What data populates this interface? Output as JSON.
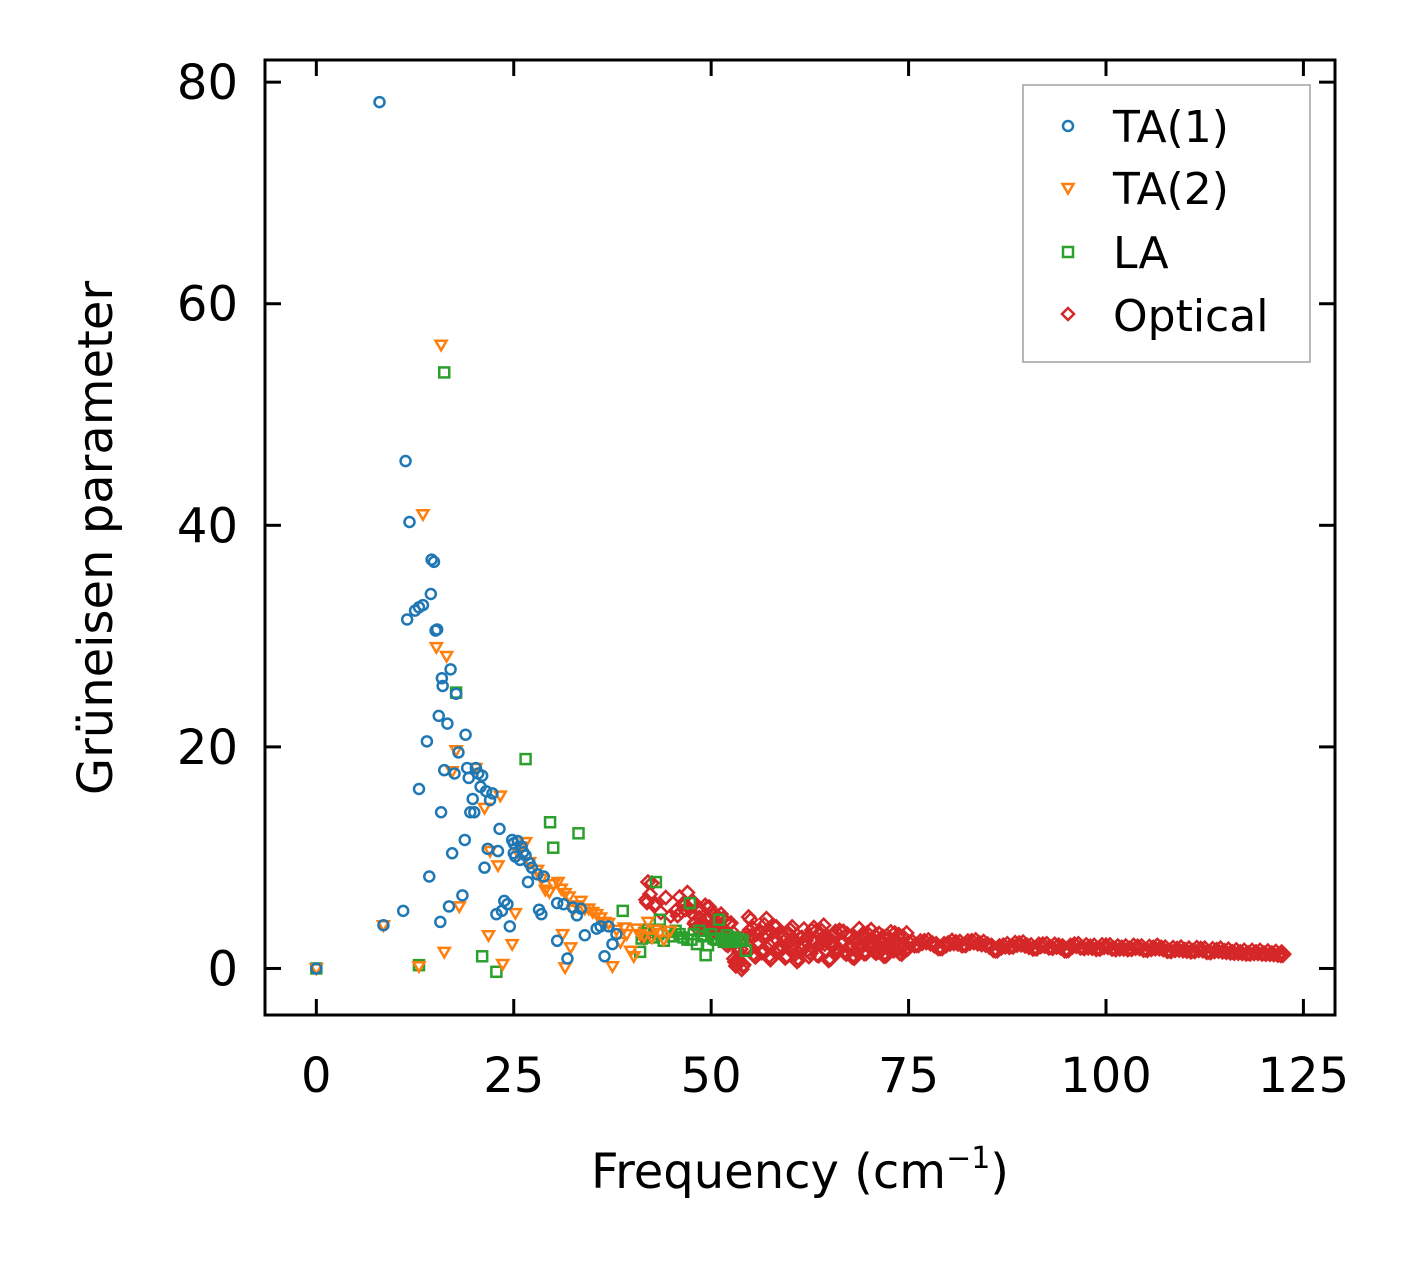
{
  "chart_data": {
    "type": "scatter",
    "xlabel": "Frequency (cm",
    "xlabel_sup": "−1",
    "xlabel_end": ")",
    "ylabel": "Grüneisen parameter",
    "xlim": [
      -6.5,
      129
    ],
    "ylim": [
      -4.2,
      82
    ],
    "xticks": [
      0,
      25,
      50,
      75,
      100,
      125
    ],
    "yticks": [
      0,
      20,
      40,
      60,
      80
    ],
    "xticks_labels": [
      "0",
      "25",
      "50",
      "75",
      "100",
      "125"
    ],
    "yticks_labels": [
      "0",
      "20",
      "40",
      "60",
      "80"
    ],
    "legend_position": "top-right",
    "series": [
      {
        "name": "TA(1)",
        "marker": "circle",
        "color": "#1f77b4",
        "points": [
          [
            0,
            0
          ],
          [
            8,
            78.2
          ],
          [
            8.5,
            3.9
          ],
          [
            11,
            5.2
          ],
          [
            11.3,
            45.8
          ],
          [
            11.5,
            31.5
          ],
          [
            11.8,
            40.3
          ],
          [
            12.5,
            32.3
          ],
          [
            13,
            16.2
          ],
          [
            13,
            32.6
          ],
          [
            13.5,
            32.8
          ],
          [
            14,
            20.5
          ],
          [
            14.3,
            8.3
          ],
          [
            14.5,
            33.8
          ],
          [
            14.6,
            36.9
          ],
          [
            14.9,
            36.7
          ],
          [
            15.1,
            30.5
          ],
          [
            15.3,
            30.6
          ],
          [
            15.5,
            22.8
          ],
          [
            15.7,
            4.2
          ],
          [
            15.8,
            14.1
          ],
          [
            15.9,
            26.2
          ],
          [
            16,
            25.5
          ],
          [
            16.2,
            17.9
          ],
          [
            16.6,
            22.1
          ],
          [
            16.8,
            5.6
          ],
          [
            17,
            27
          ],
          [
            17.2,
            10.4
          ],
          [
            17.5,
            17.6
          ],
          [
            17.7,
            24.8
          ],
          [
            18,
            19.5
          ],
          [
            18.5,
            6.6
          ],
          [
            18.8,
            11.6
          ],
          [
            18.9,
            21.1
          ],
          [
            19.1,
            18.1
          ],
          [
            19.3,
            17.2
          ],
          [
            19.5,
            14.1
          ],
          [
            19.8,
            15.3
          ],
          [
            20,
            14.1
          ],
          [
            20.2,
            18.1
          ],
          [
            20.5,
            17.6
          ],
          [
            20.8,
            16.4
          ],
          [
            21,
            17.4
          ],
          [
            21.3,
            9.1
          ],
          [
            21.5,
            16
          ],
          [
            21.7,
            10.8
          ],
          [
            22,
            15.2
          ],
          [
            22.3,
            15.8
          ],
          [
            22.8,
            4.9
          ],
          [
            23,
            10.6
          ],
          [
            23.2,
            12.6
          ],
          [
            23.5,
            5.2
          ],
          [
            23.8,
            6.1
          ],
          [
            24.2,
            5.8
          ],
          [
            24.5,
            3.8
          ],
          [
            24.8,
            11.6
          ],
          [
            25,
            11.3
          ],
          [
            25,
            10.4
          ],
          [
            25.2,
            10.1
          ],
          [
            25.5,
            11.5
          ],
          [
            25.8,
            9.8
          ],
          [
            26,
            11
          ],
          [
            26.2,
            10.5
          ],
          [
            26.5,
            10.2
          ],
          [
            26.8,
            7.8
          ],
          [
            27,
            9.5
          ],
          [
            27.3,
            9.1
          ],
          [
            28,
            8.5
          ],
          [
            28.2,
            5.3
          ],
          [
            28.5,
            4.9
          ],
          [
            28.8,
            8.3
          ],
          [
            30.5,
            5.9
          ],
          [
            30.5,
            2.5
          ],
          [
            31.3,
            5.8
          ],
          [
            31.8,
            0.9
          ],
          [
            32.5,
            5.5
          ],
          [
            33,
            4.8
          ],
          [
            33.5,
            5.4
          ],
          [
            34,
            3
          ],
          [
            35.5,
            3.6
          ],
          [
            36,
            3.8
          ],
          [
            36.5,
            1.1
          ],
          [
            37,
            3.8
          ],
          [
            37.5,
            2.2
          ],
          [
            38,
            3.1
          ]
        ]
      },
      {
        "name": "TA(2)",
        "marker": "triangle-down",
        "color": "#ff7f0e",
        "points": [
          [
            0,
            0
          ],
          [
            8.5,
            3.9
          ],
          [
            13,
            0.2
          ],
          [
            13.5,
            41
          ],
          [
            15.2,
            29
          ],
          [
            15.8,
            56.3
          ],
          [
            16.5,
            28.2
          ],
          [
            17.2,
            17.8
          ],
          [
            17.7,
            19.7
          ],
          [
            18.1,
            5.6
          ],
          [
            20.2,
            18.1
          ],
          [
            21.3,
            14.5
          ],
          [
            21.8,
            3
          ],
          [
            22,
            10.6
          ],
          [
            23,
            9.3
          ],
          [
            23.3,
            15.6
          ],
          [
            23.6,
            0.4
          ],
          [
            24.8,
            2.2
          ],
          [
            25.2,
            5
          ],
          [
            25.6,
            10.4
          ],
          [
            26,
            11
          ],
          [
            26.5,
            11.4
          ],
          [
            27,
            9.6
          ],
          [
            28,
            8.9
          ],
          [
            28.5,
            8.1
          ],
          [
            29,
            7.1
          ],
          [
            29.5,
            6.9
          ],
          [
            30,
            7.6
          ],
          [
            30.6,
            7.8
          ],
          [
            31,
            7.2
          ],
          [
            31.2,
            3.1
          ],
          [
            31.5,
            6.8
          ],
          [
            32,
            6.5
          ],
          [
            32.2,
            1.9
          ],
          [
            32.5,
            5.3
          ],
          [
            33,
            5.7
          ],
          [
            33.5,
            6.1
          ],
          [
            34,
            5.4
          ],
          [
            34.5,
            5.4
          ],
          [
            35,
            5.1
          ],
          [
            35.5,
            4.9
          ],
          [
            36,
            4.6
          ],
          [
            36.5,
            4.2
          ],
          [
            37,
            4.1
          ],
          [
            37.5,
            0.2
          ],
          [
            38,
            3.5
          ],
          [
            38.5,
            2.4
          ],
          [
            39,
            3.7
          ],
          [
            39.3,
            3.1
          ],
          [
            39.8,
            1.6
          ],
          [
            40.2,
            1.1
          ],
          [
            40.5,
            3.6
          ],
          [
            41,
            3.1
          ],
          [
            41.5,
            2.9
          ],
          [
            42,
            4.2
          ],
          [
            42.5,
            2.8
          ],
          [
            43,
            3.5
          ],
          [
            43.5,
            3.2
          ],
          [
            44,
            2.6
          ],
          [
            44.8,
            3.4
          ],
          [
            16.2,
            1.5
          ],
          [
            31.5,
            0.1
          ]
        ]
      },
      {
        "name": "LA",
        "marker": "square",
        "color": "#2ca02c",
        "points": [
          [
            0,
            0
          ],
          [
            13,
            0.3
          ],
          [
            16.2,
            53.8
          ],
          [
            17.7,
            24.9
          ],
          [
            21,
            1.1
          ],
          [
            22.8,
            -0.3
          ],
          [
            26.5,
            18.9
          ],
          [
            29.6,
            13.2
          ],
          [
            30,
            10.9
          ],
          [
            33.2,
            12.2
          ],
          [
            38.8,
            5.2
          ],
          [
            41,
            1.5
          ],
          [
            41.2,
            2.7
          ],
          [
            41.5,
            3.2
          ],
          [
            42,
            3.5
          ],
          [
            42.5,
            2.8
          ],
          [
            43,
            7.8
          ],
          [
            43.3,
            3.1
          ],
          [
            43.5,
            4.4
          ],
          [
            44,
            2.5
          ],
          [
            44.5,
            3.3
          ],
          [
            45,
            2.9
          ],
          [
            45.5,
            3.4
          ],
          [
            46,
            3.1
          ],
          [
            46.5,
            2.8
          ],
          [
            47,
            2.6
          ],
          [
            47.3,
            5.9
          ],
          [
            47.5,
            2.6
          ],
          [
            47.8,
            3.1
          ],
          [
            48.2,
            2.2
          ],
          [
            48.5,
            3.4
          ],
          [
            49,
            2.9
          ],
          [
            49.3,
            1.2
          ],
          [
            49.6,
            2.1
          ],
          [
            50,
            3.1
          ],
          [
            50.3,
            2.7
          ],
          [
            50.6,
            2.6
          ],
          [
            51,
            4.4
          ],
          [
            51.3,
            2.7
          ],
          [
            51.6,
            2.4
          ],
          [
            52,
            3
          ],
          [
            52.3,
            2.6
          ],
          [
            52.6,
            2.4
          ],
          [
            53,
            2.8
          ],
          [
            53.3,
            2.5
          ],
          [
            53.7,
            2.6
          ],
          [
            54,
            2.5
          ],
          [
            54.4,
            1.6
          ]
        ]
      },
      {
        "name": "Optical",
        "marker": "diamond",
        "color": "#d62728",
        "density": "dense",
        "points": [
          [
            41.5,
            2.8
          ],
          [
            42,
            7.8
          ],
          [
            43,
            5.8
          ],
          [
            45.5,
            5.2
          ],
          [
            46.5,
            5.9
          ],
          [
            47.5,
            6
          ],
          [
            48,
            4.2
          ],
          [
            48.5,
            4.6
          ],
          [
            49,
            4.1
          ],
          [
            49.5,
            5.5
          ],
          [
            50,
            3.8
          ],
          [
            50.5,
            4.2
          ],
          [
            51,
            3.5
          ],
          [
            51.5,
            4.5
          ],
          [
            52,
            2.2
          ],
          [
            52.5,
            4.1
          ],
          [
            53,
            0.6
          ],
          [
            53.5,
            1.5
          ],
          [
            54,
            0.2
          ],
          [
            54.5,
            3.1
          ],
          [
            55,
            4.4
          ],
          [
            55.5,
            1.1
          ],
          [
            56,
            3.3
          ],
          [
            56.5,
            1.6
          ],
          [
            57,
            4.5
          ],
          [
            57.5,
            0.8
          ],
          [
            58,
            3.8
          ],
          [
            58.5,
            1.9
          ],
          [
            59,
            2.9
          ],
          [
            59.5,
            1.1
          ],
          [
            60,
            3.5
          ],
          [
            60.5,
            2.2
          ],
          [
            61,
            0.9
          ],
          [
            61.5,
            2.8
          ],
          [
            62,
            2.5
          ],
          [
            62.5,
            1.4
          ],
          [
            63,
            3.7
          ],
          [
            63.5,
            1.2
          ],
          [
            64,
            3.4
          ],
          [
            64.5,
            2.6
          ],
          [
            65,
            0.9
          ],
          [
            65.5,
            3.1
          ],
          [
            66,
            1.8
          ],
          [
            66.5,
            3.3
          ],
          [
            67,
            1.6
          ],
          [
            67.5,
            2.8
          ],
          [
            68,
            1.2
          ],
          [
            68.5,
            2.5
          ],
          [
            69,
            2.9
          ],
          [
            69.5,
            1.6
          ],
          [
            70,
            3
          ],
          [
            70.5,
            2.2
          ],
          [
            71,
            1.9
          ],
          [
            71.5,
            2.6
          ],
          [
            72,
            1.4
          ],
          [
            72.5,
            2.7
          ],
          [
            73,
            2.1
          ],
          [
            73.5,
            2.5
          ],
          [
            74,
            1.8
          ],
          [
            74.5,
            2.2
          ],
          [
            75,
            2.4
          ],
          [
            76,
            2.1
          ],
          [
            77,
            2.5
          ],
          [
            78,
            2.3
          ],
          [
            79,
            1.8
          ],
          [
            80,
            2.3
          ],
          [
            81,
            2.4
          ],
          [
            82,
            2.1
          ],
          [
            83,
            2.5
          ],
          [
            84,
            2.3
          ],
          [
            85,
            2.2
          ],
          [
            86,
            1.6
          ],
          [
            87,
            2.1
          ],
          [
            88,
            2
          ],
          [
            89,
            2.3
          ],
          [
            90,
            2.1
          ],
          [
            91,
            1.8
          ],
          [
            92,
            2.2
          ],
          [
            93,
            1.9
          ],
          [
            94,
            2.1
          ],
          [
            95,
            1.6
          ],
          [
            96,
            2.2
          ],
          [
            97,
            1.9
          ],
          [
            98,
            2
          ],
          [
            99,
            1.8
          ],
          [
            100,
            2.1
          ],
          [
            101,
            1.8
          ],
          [
            102,
            1.9
          ],
          [
            103,
            1.8
          ],
          [
            104,
            2
          ],
          [
            105,
            1.7
          ],
          [
            106,
            1.9
          ],
          [
            107,
            1.9
          ],
          [
            108,
            1.6
          ],
          [
            109,
            1.8
          ],
          [
            110,
            1.7
          ],
          [
            111,
            1.6
          ],
          [
            112,
            1.8
          ],
          [
            113,
            1.5
          ],
          [
            114,
            1.7
          ],
          [
            115,
            1.6
          ],
          [
            116,
            1.5
          ],
          [
            117,
            1.5
          ],
          [
            118,
            1.4
          ],
          [
            119,
            1.5
          ],
          [
            120,
            1.4
          ],
          [
            121,
            1.4
          ],
          [
            122,
            1.3
          ],
          [
            122.5,
            1.3
          ]
        ]
      }
    ]
  }
}
